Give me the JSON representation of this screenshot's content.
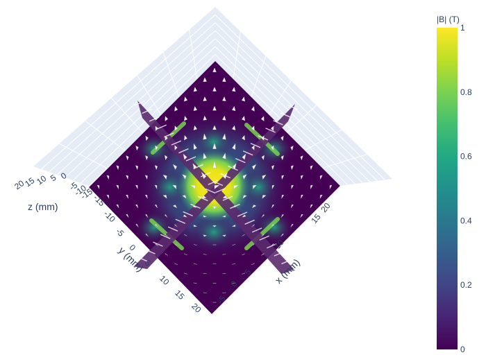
{
  "chart_data": {
    "type": "heatmap",
    "description_kind": "3d-slice",
    "colorscale": "viridis",
    "colorbar": {
      "title": "|B| (T)",
      "range": [
        0,
        1
      ],
      "ticks": [
        "0",
        "0.2",
        "0.4",
        "0.6",
        "0.8",
        "1"
      ]
    },
    "axes": {
      "x": {
        "title": "x (mm)",
        "ticks": [
          "-5",
          "0",
          "5",
          "10",
          "15",
          "20"
        ]
      },
      "y": {
        "title": "y (mm)",
        "ticks": [
          "-15",
          "-10",
          "-5",
          "0",
          "5",
          "10",
          "15",
          "20"
        ]
      },
      "z": {
        "title": "z (mm)",
        "ticks": [
          "20",
          "15",
          "10",
          "5",
          "0",
          "-5",
          "-10",
          "-15"
        ]
      }
    },
    "grid": true,
    "colors": {
      "background": "#ffffff",
      "scene_pane": "#e5ecf6",
      "grid_line": "#ffffff",
      "cone": "#f2f2f2",
      "low": "#440154",
      "high": "#fde725"
    }
  }
}
